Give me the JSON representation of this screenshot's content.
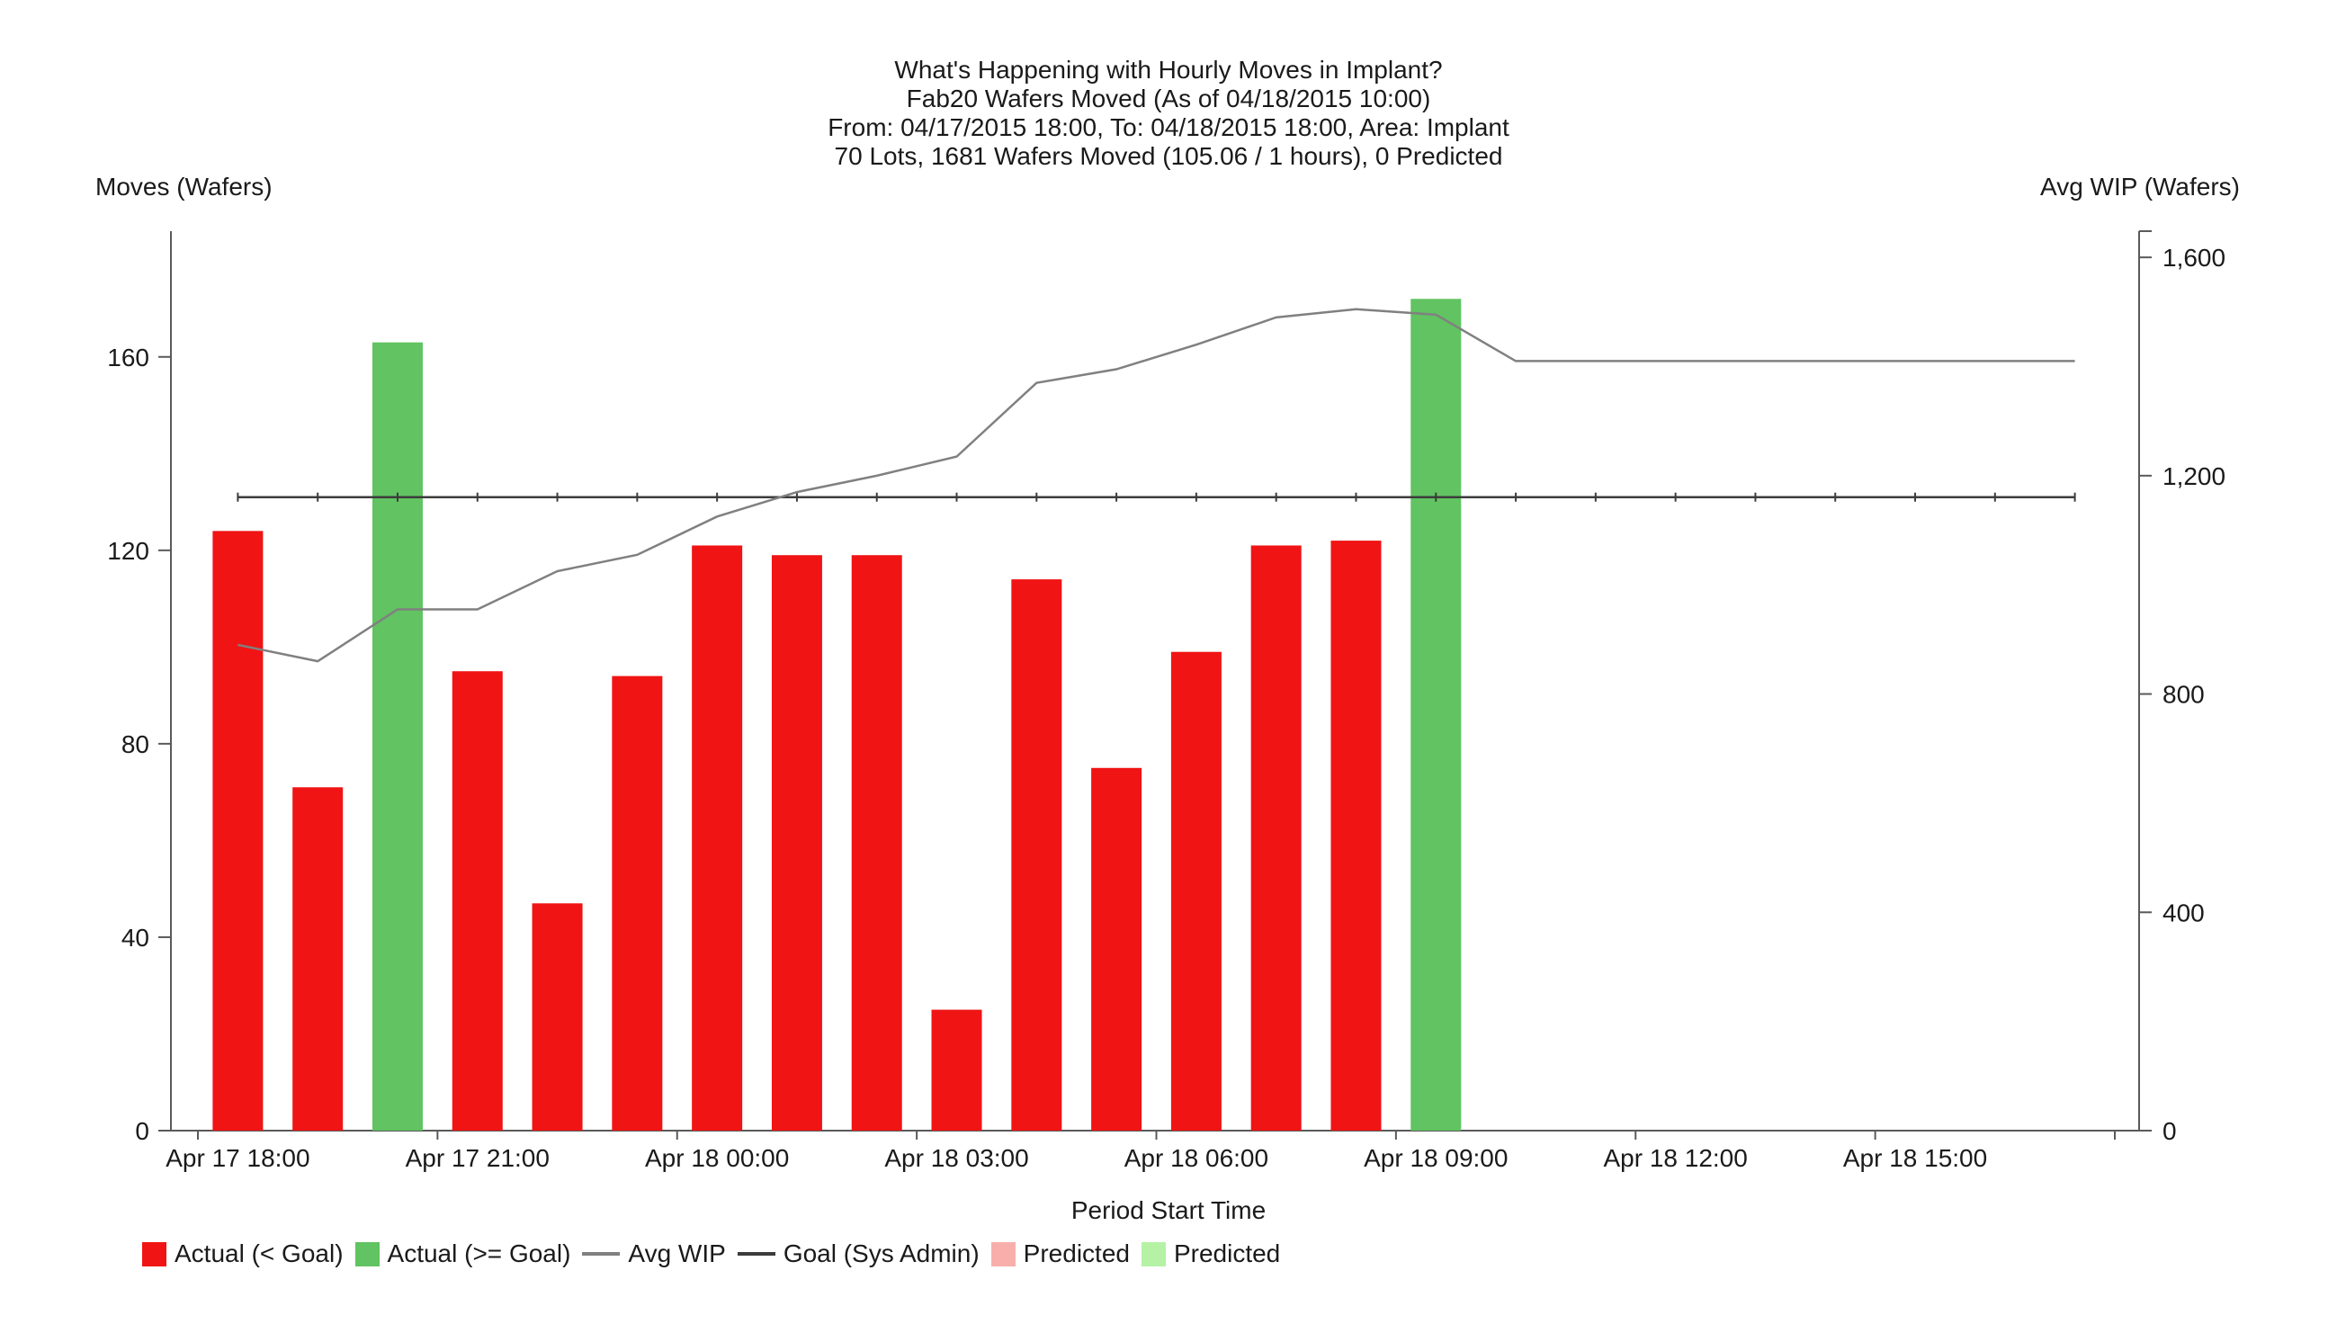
{
  "chart_data": {
    "type": "bar",
    "title": "What's Happening with Hourly Moves in Implant?",
    "subtitle_lines": [
      "Fab20 Wafers Moved (As of 04/18/2015 10:00)",
      "From: 04/17/2015 18:00, To: 04/18/2015 18:00, Area: Implant",
      "70 Lots, 1681 Wafers Moved (105.06 / 1 hours), 0 Predicted"
    ],
    "xlabel": "Period Start Time",
    "ylabel_left": "Moves (Wafers)",
    "ylabel_right": "Avg WIP (Wafers)",
    "x_slots": 24,
    "x_tick_labels": [
      "Apr 17 18:00",
      "Apr 17 21:00",
      "Apr 18 00:00",
      "Apr 18 03:00",
      "Apr 18 06:00",
      "Apr 18 09:00",
      "Apr 18 12:00",
      "Apr 18 15:00"
    ],
    "x_tick_slot_index": [
      0,
      3,
      6,
      9,
      12,
      15,
      18,
      21
    ],
    "left_axis": {
      "ticks": [
        0,
        40,
        80,
        120,
        160
      ],
      "tick_labels": [
        "0",
        "40",
        "80",
        "120",
        "160"
      ],
      "range_max": 186
    },
    "right_axis": {
      "ticks": [
        0,
        400,
        800,
        1200,
        1600
      ],
      "tick_labels": [
        "0",
        "400",
        "800",
        "1,200",
        "1,600"
      ],
      "range_max": 1648
    },
    "series": [
      {
        "name": "Actual Hourly Moves",
        "type": "bar",
        "axis": "left",
        "hours": [
          "Apr 17 18:00",
          "Apr 17 19:00",
          "Apr 17 20:00",
          "Apr 17 21:00",
          "Apr 17 22:00",
          "Apr 17 23:00",
          "Apr 18 00:00",
          "Apr 18 01:00",
          "Apr 18 02:00",
          "Apr 18 03:00",
          "Apr 18 04:00",
          "Apr 18 05:00",
          "Apr 18 06:00",
          "Apr 18 07:00",
          "Apr 18 08:00",
          "Apr 18 09:00"
        ],
        "values": [
          124,
          71,
          163,
          95,
          47,
          94,
          121,
          119,
          119,
          25,
          114,
          75,
          99,
          121,
          122,
          172
        ],
        "color_below_goal": "#f01414",
        "color_at_or_above_goal": "#61c361"
      },
      {
        "name": "Avg WIP",
        "type": "line",
        "axis": "right",
        "values": [
          890,
          860,
          955,
          955,
          1025,
          1055,
          1125,
          1170,
          1200,
          1235,
          1370,
          1395,
          1440,
          1490,
          1505,
          1495,
          1410,
          1410,
          1410,
          1410,
          1410,
          1410,
          1410,
          1410
        ],
        "color": "#808080"
      },
      {
        "name": "Goal (Sys Admin)",
        "type": "hline",
        "axis": "left",
        "value": 131,
        "color": "#3c3c3c"
      }
    ],
    "predicted_count": 0,
    "legend": [
      {
        "label": "Actual (< Goal)",
        "marker": "box",
        "color": "#f01414"
      },
      {
        "label": "Actual (>= Goal)",
        "marker": "box",
        "color": "#61c361"
      },
      {
        "label": "Avg WIP",
        "marker": "line",
        "color": "#808080"
      },
      {
        "label": "Goal (Sys Admin)",
        "marker": "line",
        "color": "#3c3c3c"
      },
      {
        "label": "Predicted",
        "marker": "box",
        "color": "#f8afab"
      },
      {
        "label": "Predicted",
        "marker": "box",
        "color": "#b5f2a5"
      }
    ]
  }
}
